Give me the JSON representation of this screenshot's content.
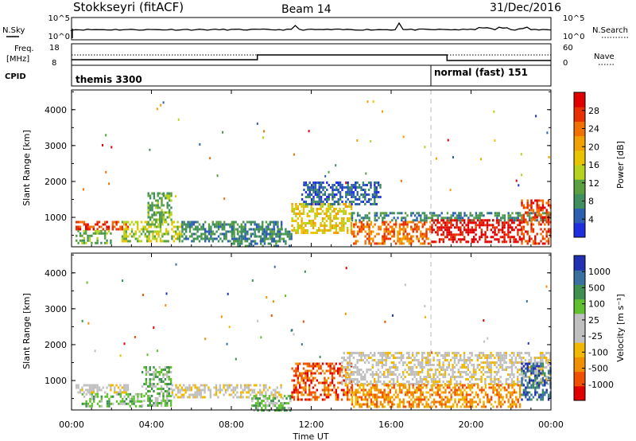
{
  "header": {
    "station": "Stokkseyri (fitACF)",
    "beam": "Beam 14",
    "date": "31/Dec/2016"
  },
  "noise_panel": {
    "left_label": "N.Sky",
    "right_label": "N.Search",
    "left_ticks": [
      "10^5",
      "10^0"
    ],
    "right_ticks": [
      "10^5",
      "10^0"
    ]
  },
  "freq_panel": {
    "left_label_1": "Freq.",
    "left_label_2": "[MHz]",
    "right_label": "Nave",
    "left_ticks": [
      "18",
      "8"
    ],
    "right_ticks": [
      "60",
      "0"
    ]
  },
  "cpid_panel": {
    "label": "CPID",
    "modes": [
      "themis 3300",
      "normal (fast) 151"
    ]
  },
  "colors": {
    "power": [
      "#1f2fe0",
      "#2d5fb0",
      "#3f8f5f",
      "#5aa040",
      "#b6d21c",
      "#e8c400",
      "#f0a000",
      "#f07000",
      "#e83000",
      "#e00000"
    ],
    "velocity": [
      "#e00000",
      "#f05000",
      "#f09000",
      "#f0b800",
      "#c0c0c0",
      "#c0c0c0",
      "#60c030",
      "#3f9050",
      "#3a70a0",
      "#2030b0"
    ],
    "grid_line": "#9a9a9a"
  },
  "chart_data": [
    {
      "type": "heatmap",
      "name": "power",
      "ylabel": "Slant Range [km]",
      "xlabel": "",
      "y_ticks": [
        1000,
        2000,
        3000,
        4000
      ],
      "ylim": [
        180,
        4550
      ],
      "xlim_hours": [
        0,
        24
      ],
      "colorbar": {
        "label": "Power [dB]",
        "ticks": [
          "4",
          "8",
          "12",
          "16",
          "20",
          "24",
          "28"
        ],
        "range": [
          0,
          32
        ]
      },
      "series": [
        {
          "x_hours": [
            0.2,
            2.8
          ],
          "range_km": [
            650,
            900
          ],
          "level": 8
        },
        {
          "x_hours": [
            0.2,
            2.0
          ],
          "range_km": [
            300,
            650
          ],
          "level": 3
        },
        {
          "x_hours": [
            2.5,
            5.5
          ],
          "range_km": [
            350,
            900
          ],
          "level": 4
        },
        {
          "x_hours": [
            3.8,
            5.0
          ],
          "range_km": [
            900,
            1700
          ],
          "level": 3
        },
        {
          "x_hours": [
            5.5,
            10.5
          ],
          "range_km": [
            350,
            900
          ],
          "level": 2
        },
        {
          "x_hours": [
            8.0,
            11.0
          ],
          "range_km": [
            180,
            700
          ],
          "level": 2
        },
        {
          "x_hours": [
            11.0,
            14.0
          ],
          "range_km": [
            600,
            1400
          ],
          "level": 5
        },
        {
          "x_hours": [
            11.5,
            15.5
          ],
          "range_km": [
            1400,
            2000
          ],
          "level": 1
        },
        {
          "x_hours": [
            14.0,
            18.0
          ],
          "range_km": [
            300,
            900
          ],
          "level": 7
        },
        {
          "x_hours": [
            14.0,
            24.0
          ],
          "range_km": [
            900,
            1150
          ],
          "level": 2
        },
        {
          "x_hours": [
            18.0,
            22.5
          ],
          "range_km": [
            300,
            950
          ],
          "level": 9
        },
        {
          "x_hours": [
            22.5,
            24.0
          ],
          "range_km": [
            300,
            1500
          ],
          "level": 8
        }
      ]
    },
    {
      "type": "heatmap",
      "name": "velocity",
      "ylabel": "Slant Range [km]",
      "xlabel": "Time UT",
      "x_ticks": [
        "00:00",
        "04:00",
        "08:00",
        "12:00",
        "16:00",
        "20:00",
        "00:00"
      ],
      "y_ticks": [
        1000,
        2000,
        3000,
        4000
      ],
      "ylim": [
        180,
        4550
      ],
      "xlim_hours": [
        0,
        24
      ],
      "colorbar": {
        "label": "Velocity [m s⁻¹]",
        "ticks": [
          "1000",
          "500",
          "100",
          "25",
          "-25",
          "-100",
          "-500",
          "-1000"
        ]
      },
      "series": [
        {
          "x_hours": [
            0.2,
            2.8
          ],
          "range_km": [
            650,
            900
          ],
          "level": 4
        },
        {
          "x_hours": [
            0.5,
            3.5
          ],
          "range_km": [
            300,
            650
          ],
          "level": 6
        },
        {
          "x_hours": [
            3.5,
            5.0
          ],
          "range_km": [
            300,
            1400
          ],
          "level": 6
        },
        {
          "x_hours": [
            5.0,
            10.5
          ],
          "range_km": [
            550,
            900
          ],
          "level": 4
        },
        {
          "x_hours": [
            9.0,
            11.0
          ],
          "range_km": [
            180,
            600
          ],
          "level": 6
        },
        {
          "x_hours": [
            11.0,
            14.0
          ],
          "range_km": [
            500,
            1500
          ],
          "level": 1
        },
        {
          "x_hours": [
            13.5,
            24.0
          ],
          "range_km": [
            900,
            1800
          ],
          "level": 4
        },
        {
          "x_hours": [
            14.0,
            22.5
          ],
          "range_km": [
            300,
            900
          ],
          "level": 2
        },
        {
          "x_hours": [
            22.5,
            24.0
          ],
          "range_km": [
            500,
            1500
          ],
          "level": 8
        }
      ]
    }
  ]
}
